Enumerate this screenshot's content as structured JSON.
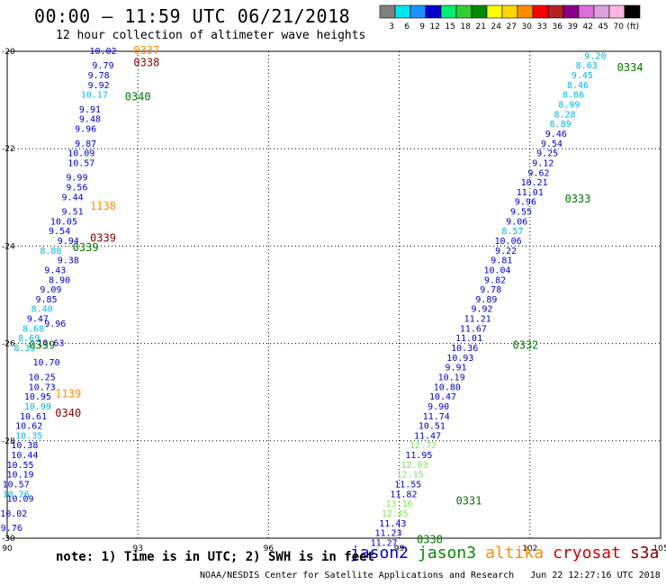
{
  "header": {
    "title": "00:00 – 11:59 UTC 06/21/2018",
    "subtitle": "12 hour collection of altimeter wave heights"
  },
  "colorbar": {
    "bins": [
      {
        "label": "3",
        "color": "#808080"
      },
      {
        "label": "6",
        "color": "#00e5ee"
      },
      {
        "label": "9",
        "color": "#1e90ff"
      },
      {
        "label": "12",
        "color": "#0000cd"
      },
      {
        "label": "15",
        "color": "#00ee76"
      },
      {
        "label": "18",
        "color": "#32cd32"
      },
      {
        "label": "21",
        "color": "#008b00"
      },
      {
        "label": "24",
        "color": "#ffff00"
      },
      {
        "label": "27",
        "color": "#ffd700"
      },
      {
        "label": "30",
        "color": "#ff8c00"
      },
      {
        "label": "33",
        "color": "#ff0000"
      },
      {
        "label": "36",
        "color": "#b22222"
      },
      {
        "label": "39",
        "color": "#8b008b"
      },
      {
        "label": "42",
        "color": "#da70d6"
      },
      {
        "label": "45",
        "color": "#dda0dd"
      },
      {
        "label": "70",
        "color": "#ffb6e1"
      },
      {
        "label": "(ft)",
        "color": "#000000"
      }
    ]
  },
  "note": "note: 1) Time is in UTC; 2) SWH is in feet",
  "footer": "NOAA/NESDIS Center for Satellite Applications and Research   Jun 22 12:27:16 UTC 2018",
  "legend": [
    {
      "label": "jason2",
      "color": "#0000cd"
    },
    {
      "label": "jason3",
      "color": "#008b00"
    },
    {
      "label": "altika",
      "color": "#ff8c00"
    },
    {
      "label": "cryosat",
      "color": "#cc0000"
    },
    {
      "label": "s3a",
      "color": "#8b0000"
    }
  ],
  "chart_data": {
    "type": "scatter",
    "xlim": [
      90,
      105
    ],
    "ylim": [
      -30,
      -20
    ],
    "xticks": [
      "90",
      "93",
      "96",
      "99",
      "102",
      "105"
    ],
    "yticks": [
      "-20",
      "-22",
      "-24",
      "-26",
      "-28",
      "-30"
    ],
    "grid": true,
    "colors": {
      "cyan": "#00b8e6",
      "blue": "#0000cd",
      "green": "#7ae65c",
      "darkgreen": "#007a00",
      "orange": "#ff8c00",
      "red": "#cc0000",
      "maroon": "#8b0000"
    },
    "swath_east": [
      {
        "x": 103.5,
        "y": -20.1,
        "v": "9.20",
        "c": "cyan"
      },
      {
        "x": 103.3,
        "y": -20.3,
        "v": "8.63",
        "c": "cyan"
      },
      {
        "x": 103.2,
        "y": -20.5,
        "v": "9.45",
        "c": "cyan"
      },
      {
        "x": 103.1,
        "y": -20.7,
        "v": "8.46",
        "c": "cyan"
      },
      {
        "x": 103.0,
        "y": -20.9,
        "v": "8.86",
        "c": "cyan"
      },
      {
        "x": 102.9,
        "y": -21.1,
        "v": "8.99",
        "c": "cyan"
      },
      {
        "x": 102.8,
        "y": -21.3,
        "v": "8.28",
        "c": "cyan"
      },
      {
        "x": 102.7,
        "y": -21.5,
        "v": "8.89",
        "c": "cyan"
      },
      {
        "x": 102.6,
        "y": -21.7,
        "v": "9.46",
        "c": "blue"
      },
      {
        "x": 102.5,
        "y": -21.9,
        "v": "9.54",
        "c": "blue"
      },
      {
        "x": 102.4,
        "y": -22.1,
        "v": "9.25",
        "c": "blue"
      },
      {
        "x": 102.3,
        "y": -22.3,
        "v": "9.12",
        "c": "blue"
      },
      {
        "x": 102.2,
        "y": -22.5,
        "v": "9.62",
        "c": "blue"
      },
      {
        "x": 102.1,
        "y": -22.7,
        "v": "10.21",
        "c": "blue"
      },
      {
        "x": 102.0,
        "y": -22.9,
        "v": "11.01",
        "c": "blue"
      },
      {
        "x": 101.9,
        "y": -23.1,
        "v": "9.96",
        "c": "blue"
      },
      {
        "x": 101.8,
        "y": -23.3,
        "v": "9.55",
        "c": "blue"
      },
      {
        "x": 101.7,
        "y": -23.5,
        "v": "9.06",
        "c": "blue"
      },
      {
        "x": 101.6,
        "y": -23.7,
        "v": "8.57",
        "c": "cyan"
      },
      {
        "x": 101.5,
        "y": -23.9,
        "v": "10.06",
        "c": "blue"
      },
      {
        "x": 101.45,
        "y": -24.1,
        "v": "9.22",
        "c": "blue"
      },
      {
        "x": 101.35,
        "y": -24.3,
        "v": "9.81",
        "c": "blue"
      },
      {
        "x": 101.25,
        "y": -24.5,
        "v": "10.04",
        "c": "blue"
      },
      {
        "x": 101.2,
        "y": -24.7,
        "v": "9.82",
        "c": "blue"
      },
      {
        "x": 101.1,
        "y": -24.9,
        "v": "9.78",
        "c": "blue"
      },
      {
        "x": 101.0,
        "y": -25.1,
        "v": "9.89",
        "c": "blue"
      },
      {
        "x": 100.9,
        "y": -25.3,
        "v": "9.92",
        "c": "blue"
      },
      {
        "x": 100.8,
        "y": -25.5,
        "v": "11.21",
        "c": "blue"
      },
      {
        "x": 100.7,
        "y": -25.7,
        "v": "11.67",
        "c": "blue"
      },
      {
        "x": 100.6,
        "y": -25.9,
        "v": "11.01",
        "c": "blue"
      },
      {
        "x": 100.5,
        "y": -26.1,
        "v": "10.36",
        "c": "blue"
      },
      {
        "x": 100.4,
        "y": -26.3,
        "v": "10.93",
        "c": "blue"
      },
      {
        "x": 100.3,
        "y": -26.5,
        "v": "9.91",
        "c": "blue"
      },
      {
        "x": 100.2,
        "y": -26.7,
        "v": "10.19",
        "c": "blue"
      },
      {
        "x": 100.1,
        "y": -26.9,
        "v": "10.80",
        "c": "blue"
      },
      {
        "x": 100.0,
        "y": -27.1,
        "v": "10.47",
        "c": "blue"
      },
      {
        "x": 99.9,
        "y": -27.3,
        "v": "9.90",
        "c": "blue"
      },
      {
        "x": 99.85,
        "y": -27.5,
        "v": "11.74",
        "c": "blue"
      },
      {
        "x": 99.75,
        "y": -27.7,
        "v": "10.51",
        "c": "blue"
      },
      {
        "x": 99.65,
        "y": -27.9,
        "v": "11.47",
        "c": "blue"
      },
      {
        "x": 99.55,
        "y": -28.1,
        "v": "12.72",
        "c": "green"
      },
      {
        "x": 99.45,
        "y": -28.3,
        "v": "11.95",
        "c": "blue"
      },
      {
        "x": 99.35,
        "y": -28.5,
        "v": "12.03",
        "c": "green"
      },
      {
        "x": 99.25,
        "y": -28.7,
        "v": "12.15",
        "c": "green"
      },
      {
        "x": 99.2,
        "y": -28.9,
        "v": "11.55",
        "c": "blue"
      },
      {
        "x": 99.1,
        "y": -29.1,
        "v": "11.82",
        "c": "blue"
      },
      {
        "x": 99.0,
        "y": -29.3,
        "v": "13.16",
        "c": "green"
      },
      {
        "x": 98.9,
        "y": -29.5,
        "v": "12.45",
        "c": "green"
      },
      {
        "x": 98.85,
        "y": -29.7,
        "v": "11.43",
        "c": "blue"
      },
      {
        "x": 98.75,
        "y": -29.9,
        "v": "11.23",
        "c": "blue"
      },
      {
        "x": 98.65,
        "y": -30.1,
        "v": "11.27",
        "c": "blue"
      }
    ],
    "swath_west": [
      {
        "x": 92.2,
        "y": -20.0,
        "v": "10.02",
        "c": "blue"
      },
      {
        "x": 92.2,
        "y": -20.3,
        "v": "9.79",
        "c": "blue"
      },
      {
        "x": 92.1,
        "y": -20.5,
        "v": "9.78",
        "c": "blue"
      },
      {
        "x": 92.1,
        "y": -20.7,
        "v": "9.92",
        "c": "blue"
      },
      {
        "x": 92.0,
        "y": -20.9,
        "v": "10.17",
        "c": "cyan"
      },
      {
        "x": 91.9,
        "y": -21.2,
        "v": "9.91",
        "c": "blue"
      },
      {
        "x": 91.9,
        "y": -21.4,
        "v": "9.48",
        "c": "blue"
      },
      {
        "x": 91.8,
        "y": -21.6,
        "v": "9.96",
        "c": "blue"
      },
      {
        "x": 91.8,
        "y": -21.9,
        "v": "9.87",
        "c": "blue"
      },
      {
        "x": 91.7,
        "y": -22.1,
        "v": "10.09",
        "c": "blue"
      },
      {
        "x": 91.7,
        "y": -22.3,
        "v": "10.57",
        "c": "blue"
      },
      {
        "x": 91.6,
        "y": -22.6,
        "v": "9.99",
        "c": "blue"
      },
      {
        "x": 91.6,
        "y": -22.8,
        "v": "9.56",
        "c": "blue"
      },
      {
        "x": 91.5,
        "y": -23.0,
        "v": "9.44",
        "c": "blue"
      },
      {
        "x": 91.5,
        "y": -23.3,
        "v": "9.51",
        "c": "blue"
      },
      {
        "x": 91.3,
        "y": -23.5,
        "v": "10.05",
        "c": "blue"
      },
      {
        "x": 91.2,
        "y": -23.7,
        "v": "9.54",
        "c": "blue"
      },
      {
        "x": 91.4,
        "y": -23.9,
        "v": "9.94",
        "c": "blue"
      },
      {
        "x": 91.0,
        "y": -24.1,
        "v": "8.88",
        "c": "cyan"
      },
      {
        "x": 91.4,
        "y": -24.3,
        "v": "9.38",
        "c": "blue"
      },
      {
        "x": 91.1,
        "y": -24.5,
        "v": "9.43",
        "c": "blue"
      },
      {
        "x": 91.2,
        "y": -24.7,
        "v": "8.90",
        "c": "blue"
      },
      {
        "x": 91.0,
        "y": -24.9,
        "v": "9.09",
        "c": "blue"
      },
      {
        "x": 90.9,
        "y": -25.1,
        "v": "9.85",
        "c": "blue"
      },
      {
        "x": 90.8,
        "y": -25.3,
        "v": "8.40",
        "c": "cyan"
      },
      {
        "x": 90.7,
        "y": -25.5,
        "v": "9.47",
        "c": "blue"
      },
      {
        "x": 91.1,
        "y": -25.6,
        "v": "9.96",
        "c": "blue"
      },
      {
        "x": 90.6,
        "y": -25.7,
        "v": "8.68",
        "c": "cyan"
      },
      {
        "x": 90.5,
        "y": -25.9,
        "v": "8.69",
        "c": "cyan"
      },
      {
        "x": 90.4,
        "y": -26.1,
        "v": "8.39",
        "c": "cyan"
      },
      {
        "x": 91.0,
        "y": -26.0,
        "v": "10.63",
        "c": "blue"
      },
      {
        "x": 90.9,
        "y": -26.4,
        "v": "10.70",
        "c": "blue"
      },
      {
        "x": 90.8,
        "y": -26.7,
        "v": "10.25",
        "c": "blue"
      },
      {
        "x": 90.8,
        "y": -26.9,
        "v": "10.73",
        "c": "blue"
      },
      {
        "x": 90.7,
        "y": -27.1,
        "v": "10.95",
        "c": "blue"
      },
      {
        "x": 90.7,
        "y": -27.3,
        "v": "10.99",
        "c": "cyan"
      },
      {
        "x": 90.6,
        "y": -27.5,
        "v": "10.61",
        "c": "blue"
      },
      {
        "x": 90.5,
        "y": -27.7,
        "v": "10.62",
        "c": "blue"
      },
      {
        "x": 90.5,
        "y": -27.9,
        "v": "10.35",
        "c": "cyan"
      },
      {
        "x": 90.4,
        "y": -28.1,
        "v": "10.38",
        "c": "blue"
      },
      {
        "x": 90.4,
        "y": -28.3,
        "v": "10.44",
        "c": "blue"
      },
      {
        "x": 90.3,
        "y": -28.5,
        "v": "10.55",
        "c": "blue"
      },
      {
        "x": 90.3,
        "y": -28.7,
        "v": "10.19",
        "c": "blue"
      },
      {
        "x": 90.2,
        "y": -28.9,
        "v": "10.57",
        "c": "blue"
      },
      {
        "x": 90.2,
        "y": -29.1,
        "v": "10.26",
        "c": "cyan"
      },
      {
        "x": 90.3,
        "y": -29.2,
        "v": "10.09",
        "c": "blue"
      },
      {
        "x": 90.15,
        "y": -29.5,
        "v": "10.02",
        "c": "blue"
      },
      {
        "x": 90.1,
        "y": -29.8,
        "v": "9.76",
        "c": "blue"
      }
    ],
    "pass_labels": [
      {
        "x": 93.2,
        "y": -20.0,
        "v": "0337",
        "c": "orange"
      },
      {
        "x": 93.2,
        "y": -20.25,
        "v": "0338",
        "c": "maroon"
      },
      {
        "x": 93.0,
        "y": -20.95,
        "v": "0340",
        "c": "darkgreen"
      },
      {
        "x": 92.2,
        "y": -23.2,
        "v": "1138",
        "c": "orange"
      },
      {
        "x": 92.2,
        "y": -23.85,
        "v": "0339",
        "c": "maroon"
      },
      {
        "x": 91.8,
        "y": -24.05,
        "v": "0339",
        "c": "darkgreen"
      },
      {
        "x": 90.8,
        "y": -26.05,
        "v": "0339",
        "c": "darkgreen"
      },
      {
        "x": 91.4,
        "y": -27.05,
        "v": "1139",
        "c": "orange"
      },
      {
        "x": 91.4,
        "y": -27.45,
        "v": "0340",
        "c": "maroon"
      },
      {
        "x": 104.3,
        "y": -20.35,
        "v": "0334",
        "c": "darkgreen"
      },
      {
        "x": 103.1,
        "y": -23.05,
        "v": "0333",
        "c": "darkgreen"
      },
      {
        "x": 101.9,
        "y": -26.05,
        "v": "0332",
        "c": "darkgreen"
      },
      {
        "x": 100.6,
        "y": -29.25,
        "v": "0331",
        "c": "darkgreen"
      },
      {
        "x": 99.7,
        "y": -30.05,
        "v": "0330",
        "c": "darkgreen"
      }
    ]
  }
}
